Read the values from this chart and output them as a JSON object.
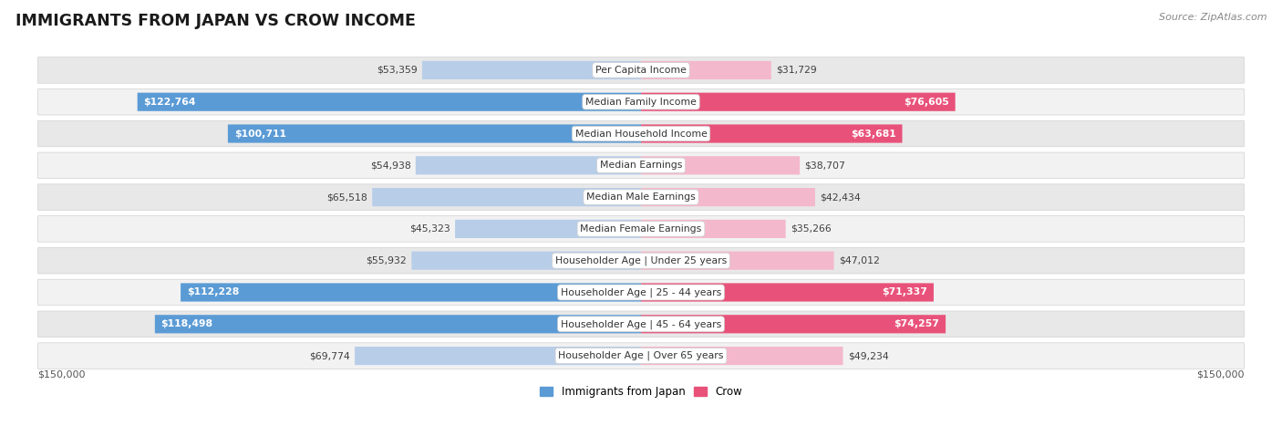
{
  "title": "IMMIGRANTS FROM JAPAN VS CROW INCOME",
  "source": "Source: ZipAtlas.com",
  "categories": [
    "Per Capita Income",
    "Median Family Income",
    "Median Household Income",
    "Median Earnings",
    "Median Male Earnings",
    "Median Female Earnings",
    "Householder Age | Under 25 years",
    "Householder Age | 25 - 44 years",
    "Householder Age | 45 - 64 years",
    "Householder Age | Over 65 years"
  ],
  "japan_values": [
    53359,
    122764,
    100711,
    54938,
    65518,
    45323,
    55932,
    112228,
    118498,
    69774
  ],
  "crow_values": [
    31729,
    76605,
    63681,
    38707,
    42434,
    35266,
    47012,
    71337,
    74257,
    49234
  ],
  "japan_labels": [
    "$53,359",
    "$122,764",
    "$100,711",
    "$54,938",
    "$65,518",
    "$45,323",
    "$55,932",
    "$112,228",
    "$118,498",
    "$69,774"
  ],
  "crow_labels": [
    "$31,729",
    "$76,605",
    "$63,681",
    "$38,707",
    "$42,434",
    "$35,266",
    "$47,012",
    "$71,337",
    "$74,257",
    "$49,234"
  ],
  "max_value": 150000,
  "japan_color_light": "#b8cde8",
  "japan_color_dark": "#5b9bd5",
  "crow_color_light": "#f4b8cc",
  "crow_color_dark": "#e8527a",
  "japan_threshold": 85000,
  "crow_threshold": 60000,
  "legend_japan": "Immigrants from Japan",
  "legend_crow": "Crow",
  "legend_japan_color": "#5b9bd5",
  "legend_crow_color": "#e8527a",
  "row_bg_light": "#f2f2f2",
  "row_bg_dark": "#e8e8e8",
  "row_border": "#d0d0d0",
  "label_dark_color": "#404040",
  "label_inside_color": "#ffffff",
  "axis_label": "$150,000"
}
